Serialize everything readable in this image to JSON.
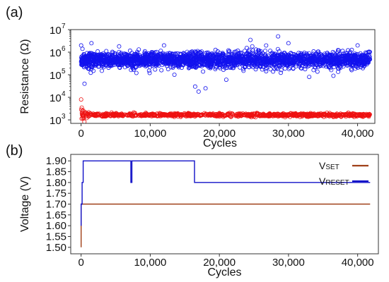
{
  "chart_data": [
    {
      "panel_label": "(a)",
      "type": "scatter",
      "title": "",
      "xlabel": "Cycles",
      "ylabel": "Resistance (Ω)",
      "xlim": [
        -1500,
        42500
      ],
      "ylim": [
        700,
        10000000
      ],
      "yscale": "log",
      "x_ticks": [
        0,
        10000,
        20000,
        30000,
        40000
      ],
      "x_tick_labels": [
        "0",
        "10,000",
        "20,000",
        "30,000",
        "40,000"
      ],
      "y_ticks": [
        1000,
        10000,
        100000,
        1000000,
        10000000
      ],
      "y_tick_labels": [
        "10",
        "10",
        "10",
        "10",
        "10"
      ],
      "y_tick_exponents": [
        "3",
        "4",
        "5",
        "6",
        "7"
      ],
      "grid": false,
      "legend": "none",
      "marker": "open-circle",
      "series": [
        {
          "color": "#1212ee",
          "state": "high",
          "x_range": [
            0,
            41800
          ],
          "typical_range": [
            150000,
            1500000
          ],
          "median": 450000,
          "points": [
            [
              0,
              2000000
            ],
            [
              200,
              1400000
            ],
            [
              500,
              40000
            ],
            [
              1500,
              2500000
            ],
            [
              3000,
              150000
            ],
            [
              5500,
              1800000
            ],
            [
              8000,
              120000
            ],
            [
              12000,
              2000000
            ],
            [
              13500,
              100000
            ],
            [
              16500,
              30000
            ],
            [
              17000,
              18000
            ],
            [
              18000,
              25000
            ],
            [
              21000,
              60000
            ],
            [
              23500,
              150000
            ],
            [
              24500,
              3500000
            ],
            [
              28500,
              5000000
            ],
            [
              30000,
              2500000
            ],
            [
              33000,
              80000
            ],
            [
              36500,
              90000
            ],
            [
              40000,
              2000000
            ],
            [
              41500,
              1000000
            ]
          ]
        },
        {
          "color": "#ee1111",
          "state": "low",
          "x_range": [
            0,
            41800
          ],
          "typical_range": [
            1400,
            2000
          ],
          "median": 1650,
          "points": [
            [
              0,
              8000
            ],
            [
              100,
              3500
            ],
            [
              300,
              2600
            ],
            [
              600,
              2200
            ],
            [
              1000,
              1900
            ],
            [
              2000,
              1800
            ],
            [
              7000,
              1900
            ],
            [
              12000,
              1800
            ],
            [
              20000,
              2000
            ],
            [
              25000,
              1900
            ],
            [
              30000,
              1800
            ],
            [
              35000,
              1800
            ],
            [
              41500,
              1700
            ]
          ]
        }
      ]
    },
    {
      "panel_label": "(b)",
      "type": "line",
      "title": "",
      "xlabel": "Cycles",
      "ylabel": "Voltage (V)",
      "xlim": [
        -1500,
        43000
      ],
      "ylim": [
        1.47,
        1.93
      ],
      "x_ticks": [
        0,
        10000,
        20000,
        30000,
        40000
      ],
      "x_tick_labels": [
        "0",
        "10,000",
        "20,000",
        "30,000",
        "40,000"
      ],
      "y_ticks": [
        1.5,
        1.55,
        1.6,
        1.65,
        1.7,
        1.75,
        1.8,
        1.85,
        1.9
      ],
      "y_tick_labels": [
        "1.50",
        "1.55",
        "1.60",
        "1.65",
        "1.70",
        "1.75",
        "1.80",
        "1.85",
        "1.90"
      ],
      "grid": false,
      "legend": "top-right",
      "series": [
        {
          "name": "VSET",
          "legend_main": "V",
          "legend_sub": "SET",
          "color": "#a04018",
          "x": [
            0,
            0,
            41800
          ],
          "y": [
            1.5,
            1.7,
            1.7
          ]
        },
        {
          "name": "VRESET",
          "legend_main": "V",
          "legend_sub": "RESET",
          "color": "#1010c8",
          "x": [
            0,
            0,
            150,
            150,
            300,
            300,
            7200,
            7200,
            7350,
            7350,
            16400,
            16400,
            41800
          ],
          "y": [
            1.6,
            1.7,
            1.7,
            1.8,
            1.8,
            1.9,
            1.9,
            1.8,
            1.8,
            1.9,
            1.9,
            1.8,
            1.8
          ]
        }
      ]
    }
  ]
}
